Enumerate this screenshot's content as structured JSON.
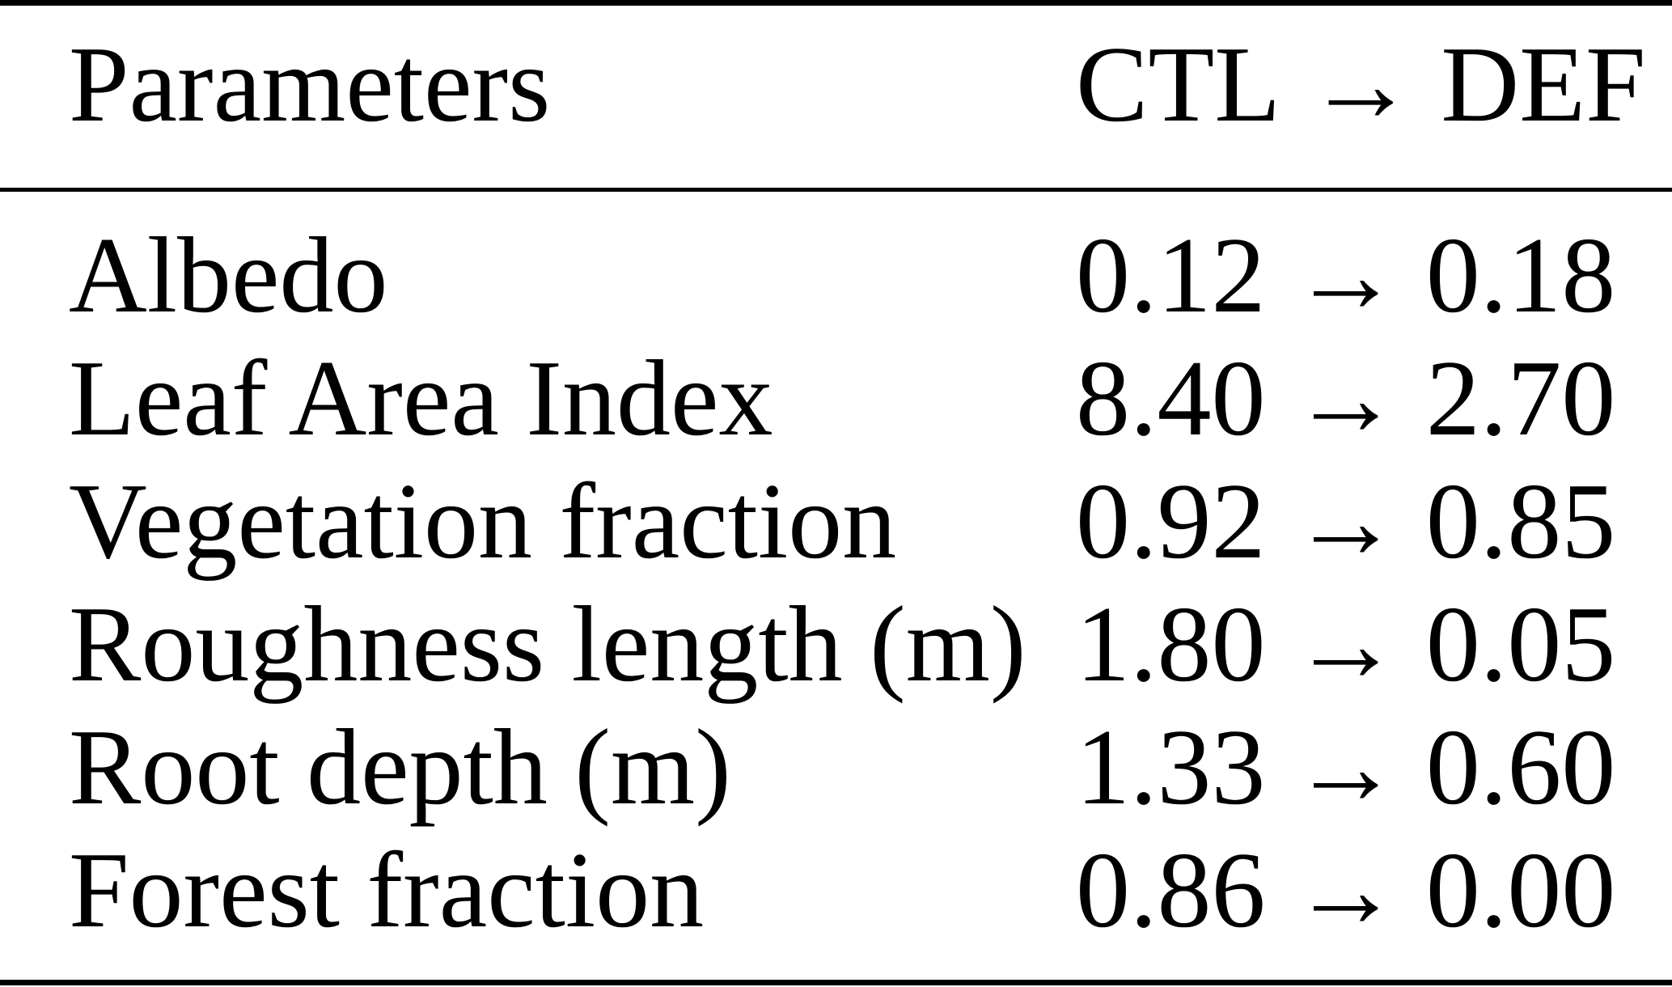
{
  "table": {
    "arrow": "→",
    "header": {
      "col1": "Parameters",
      "col2_from": "CTL",
      "col2_to": "DEF"
    },
    "rows": [
      {
        "name": "Albedo",
        "from": "0.12",
        "to": "0.18"
      },
      {
        "name": "Leaf Area Index",
        "from": "8.40",
        "to": "2.70"
      },
      {
        "name": "Vegetation fraction",
        "from": "0.92",
        "to": "0.85"
      },
      {
        "name": "Roughness length (m)",
        "from": "1.80",
        "to": "0.05"
      },
      {
        "name": "Root depth (m)",
        "from": "1.33",
        "to": "0.60"
      },
      {
        "name": "Forest fraction",
        "from": "0.86",
        "to": "0.00"
      }
    ]
  }
}
